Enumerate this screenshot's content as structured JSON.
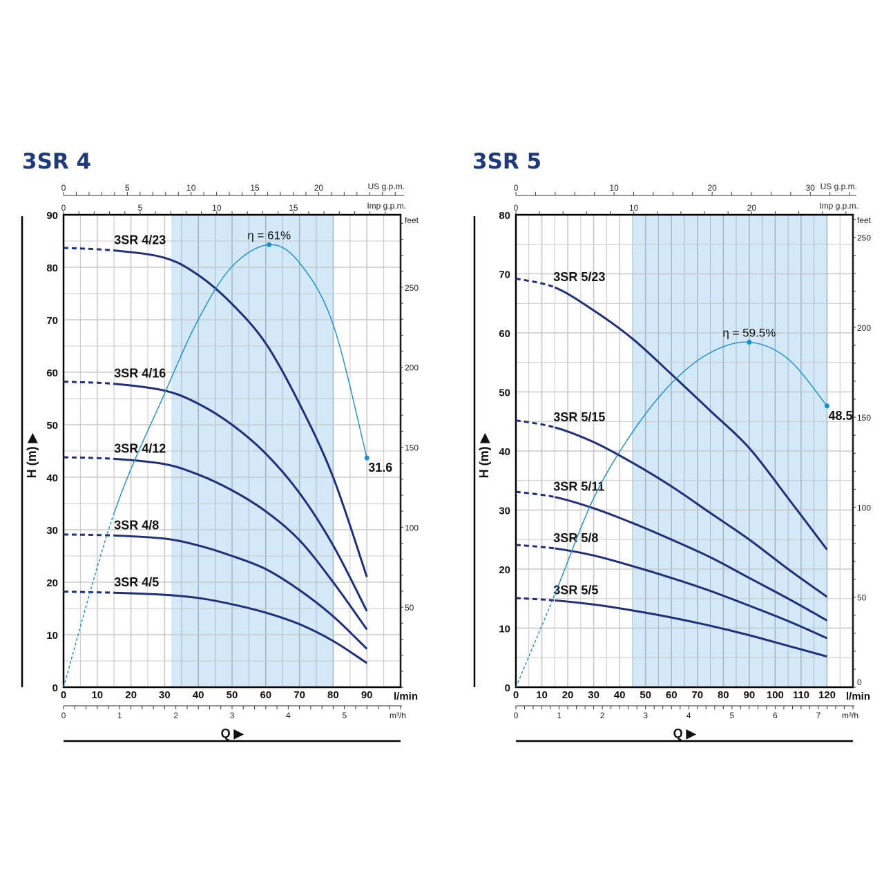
{
  "colors": {
    "title": "#1f3a7a",
    "curve": "#1f2f7a",
    "efficiency": "#1a8ccc",
    "shade": "#d3e9f7",
    "grid": "#c8c8c8"
  },
  "chart_data": [
    {
      "type": "line",
      "title": "3SR 4",
      "xlabel": "Q",
      "ylabel": "H (m)",
      "x_unit": "l/min",
      "xlim": [
        0,
        100
      ],
      "ylim": [
        0,
        90
      ],
      "xticks": [
        0,
        10,
        20,
        30,
        40,
        50,
        60,
        70,
        80,
        90
      ],
      "yticks": [
        0,
        10,
        20,
        30,
        40,
        50,
        60,
        70,
        80,
        90
      ],
      "grid": true,
      "recommended_range": [
        32,
        80
      ],
      "secondary_axes": {
        "us_gpm": {
          "label": "US g.p.m.",
          "ticks": [
            0,
            5,
            10,
            15,
            20
          ]
        },
        "imp_gpm": {
          "label": "Imp g.p.m.",
          "ticks": [
            0,
            5,
            10,
            15
          ]
        },
        "m3h": {
          "label": "m³/h",
          "ticks": [
            0,
            1,
            2,
            3,
            4,
            5
          ]
        },
        "feet": {
          "label": "feet",
          "ticks": [
            50,
            100,
            150,
            200,
            250
          ]
        }
      },
      "dashed_until": 15,
      "x": [
        0,
        15,
        30,
        40,
        50,
        60,
        70,
        80,
        90
      ],
      "series": [
        {
          "name": "3SR 4/23",
          "values": [
            83.7,
            83.2,
            81.8,
            78.5,
            73,
            65.5,
            54,
            40,
            21
          ]
        },
        {
          "name": "3SR 4/16",
          "values": [
            58.2,
            57.8,
            56.5,
            54,
            50,
            44.5,
            37,
            27,
            14.5
          ]
        },
        {
          "name": "3SR 4/12",
          "values": [
            43.8,
            43.5,
            42.5,
            40.5,
            37.5,
            33.5,
            28,
            20,
            11
          ]
        },
        {
          "name": "3SR 4/8",
          "values": [
            29.1,
            28.9,
            28.3,
            27,
            25,
            22.5,
            18.5,
            13.5,
            7.3
          ]
        },
        {
          "name": "3SR 4/5",
          "values": [
            18.2,
            18.0,
            17.6,
            17,
            15.8,
            14.2,
            12,
            8.8,
            4.6
          ]
        }
      ],
      "efficiency": {
        "unit": "%",
        "scale_m_per_percent": 1.382,
        "x": [
          0,
          15,
          30,
          40,
          50,
          61,
          70,
          80,
          90
        ],
        "values": [
          0,
          24,
          40.5,
          50.7,
          58,
          61,
          58.5,
          50,
          31.6
        ],
        "peak_label": "η = 61%",
        "end_label": "31.6"
      }
    },
    {
      "type": "line",
      "title": "3SR 5",
      "xlabel": "Q",
      "ylabel": "H (m)",
      "x_unit": "l/min",
      "xlim": [
        0,
        130
      ],
      "ylim": [
        0,
        80
      ],
      "xticks": [
        0,
        10,
        20,
        30,
        40,
        50,
        60,
        70,
        80,
        90,
        100,
        110,
        120
      ],
      "yticks": [
        0,
        10,
        20,
        30,
        40,
        50,
        60,
        70,
        80
      ],
      "grid": true,
      "recommended_range": [
        45,
        120
      ],
      "secondary_axes": {
        "us_gpm": {
          "label": "US g.p.m.",
          "ticks": [
            0,
            10,
            20,
            30
          ]
        },
        "imp_gpm": {
          "label": "Imp g.p.m.",
          "ticks": [
            0,
            10,
            20
          ]
        },
        "m3h": {
          "label": "m³/h",
          "ticks": [
            0,
            1,
            2,
            3,
            4,
            5,
            6,
            7
          ]
        },
        "feet": {
          "label": "feet",
          "ticks": [
            0,
            50,
            100,
            150,
            200,
            250
          ]
        }
      },
      "dashed_until": 15,
      "x": [
        0,
        15,
        30,
        45,
        60,
        75,
        90,
        105,
        120
      ],
      "series": [
        {
          "name": "3SR 5/23",
          "values": [
            69.2,
            67.7,
            63.8,
            59,
            53,
            46.8,
            40.5,
            32,
            23.3
          ]
        },
        {
          "name": "3SR 5/15",
          "values": [
            45.2,
            44,
            41.5,
            38,
            34,
            29.5,
            25,
            20,
            15.3
          ]
        },
        {
          "name": "3SR 5/11",
          "values": [
            33.1,
            32.2,
            30.3,
            27.8,
            25,
            22,
            18.5,
            15,
            11.3
          ]
        },
        {
          "name": "3SR 5/8",
          "values": [
            24.1,
            23.5,
            22.3,
            20.5,
            18.5,
            16.3,
            13.8,
            11.2,
            8.3
          ]
        },
        {
          "name": "3SR 5/5",
          "values": [
            15.1,
            14.7,
            14,
            13,
            11.8,
            10.4,
            8.8,
            7,
            5.2
          ]
        }
      ],
      "efficiency": {
        "unit": "%",
        "scale_m_per_percent": 0.982,
        "x": [
          0,
          15,
          30,
          45,
          60,
          75,
          90,
          105,
          120
        ],
        "values": [
          0,
          16,
          32.6,
          44,
          52.4,
          57.7,
          59.5,
          56.6,
          48.5
        ],
        "peak_label": "η = 59.5%",
        "end_label": "48.5"
      }
    }
  ]
}
